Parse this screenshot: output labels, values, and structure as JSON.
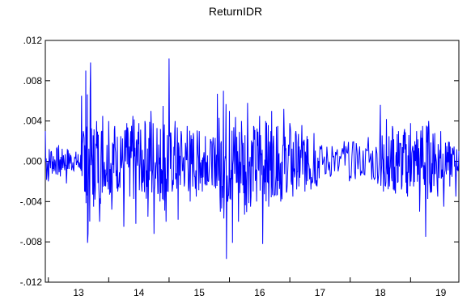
{
  "chart_data": {
    "type": "line",
    "title": "ReturnIDR",
    "xlabel": "",
    "ylabel": "",
    "ylim": [
      -0.012,
      0.012
    ],
    "xlim": [
      2012.45,
      2019.3
    ],
    "y_ticks": [
      0.012,
      0.008,
      0.004,
      0.0,
      -0.004,
      -0.008,
      -0.012
    ],
    "y_tick_labels": [
      ".012",
      ".008",
      ".004",
      ".000",
      "-.004",
      "-.008",
      "-.012"
    ],
    "x_tick_positions": [
      2013,
      2014,
      2015,
      2016,
      2017,
      2018,
      2019
    ],
    "x_tick_labels": [
      "13",
      "14",
      "15",
      "16",
      "17",
      "18",
      "19"
    ],
    "grid": false,
    "legend": "none",
    "series": [
      {
        "color": "#0000ff",
        "x": [
          2012.45,
          2012.5,
          2012.55,
          2012.6,
          2012.65,
          2012.7,
          2012.75,
          2012.8,
          2012.85,
          2012.9,
          2012.95,
          2013.0,
          2013.05,
          2013.1,
          2013.12,
          2013.15,
          2013.2,
          2013.25,
          2013.3,
          2013.35,
          2013.4,
          2013.45,
          2013.5,
          2013.55,
          2013.6,
          2013.65,
          2013.7,
          2013.75,
          2013.8,
          2013.85,
          2013.9,
          2013.95,
          2014.0,
          2014.05,
          2014.1,
          2014.15,
          2014.2,
          2014.25,
          2014.3,
          2014.35,
          2014.4,
          2014.45,
          2014.5,
          2014.55,
          2014.6,
          2014.65,
          2014.7,
          2014.75,
          2014.8,
          2014.85,
          2014.9,
          2014.95,
          2015.0,
          2015.05,
          2015.1,
          2015.15,
          2015.2,
          2015.25,
          2015.3,
          2015.35,
          2015.4,
          2015.45,
          2015.5,
          2015.55,
          2015.6,
          2015.65,
          2015.7,
          2015.75,
          2015.8,
          2015.85,
          2015.9,
          2015.95,
          2016.0,
          2016.05,
          2016.1,
          2016.15,
          2016.2,
          2016.25,
          2016.3,
          2016.35,
          2016.4,
          2016.45,
          2016.5,
          2016.55,
          2016.6,
          2016.65,
          2016.7,
          2016.75,
          2016.8,
          2016.85,
          2016.9,
          2016.95,
          2017.0,
          2017.1,
          2017.2,
          2017.3,
          2017.4,
          2017.5,
          2017.6,
          2017.7,
          2017.8,
          2017.9,
          2018.0,
          2018.05,
          2018.1,
          2018.15,
          2018.2,
          2018.25,
          2018.3,
          2018.35,
          2018.4,
          2018.45,
          2018.5,
          2018.55,
          2018.6,
          2018.65,
          2018.7,
          2018.75,
          2018.8,
          2018.85,
          2018.9,
          2018.95,
          2019.0,
          2019.05,
          2019.1,
          2019.15,
          2019.2,
          2019.25,
          2019.3
        ],
        "values": [
          0.003,
          -0.002,
          0.001,
          -0.0008,
          0.0012,
          -0.0015,
          0.0006,
          -0.0022,
          0.0008,
          -0.0005,
          0.0003,
          -0.0006,
          0.0065,
          -0.003,
          0.009,
          -0.0081,
          0.0098,
          -0.0045,
          0.004,
          -0.006,
          0.0045,
          -0.0025,
          0.004,
          -0.0048,
          0.0035,
          -0.003,
          0.0025,
          -0.0065,
          0.0038,
          -0.0035,
          0.0045,
          -0.0062,
          0.0038,
          -0.003,
          0.004,
          -0.0055,
          0.005,
          -0.0072,
          0.0033,
          -0.004,
          0.0055,
          -0.006,
          0.0102,
          -0.003,
          0.004,
          -0.0058,
          0.003,
          -0.0025,
          0.0035,
          -0.004,
          0.0028,
          -0.0035,
          0.003,
          -0.003,
          0.0025,
          -0.002,
          0.002,
          -0.0025,
          0.0067,
          -0.005,
          0.007,
          -0.0097,
          0.005,
          -0.0081,
          0.0044,
          -0.006,
          0.004,
          -0.0053,
          0.0058,
          -0.0045,
          0.0035,
          -0.004,
          0.0045,
          -0.0082,
          0.004,
          -0.0045,
          0.005,
          -0.0033,
          0.0035,
          -0.004,
          0.0052,
          -0.003,
          0.0038,
          -0.0035,
          0.003,
          -0.0025,
          0.0036,
          -0.003,
          0.0022,
          -0.0028,
          0.0028,
          -0.0025,
          0.0015,
          -0.0012,
          0.0015,
          -0.001,
          0.002,
          -0.0015,
          0.0018,
          -0.0012,
          0.0024,
          -0.0018,
          0.0056,
          -0.003,
          0.0042,
          -0.0025,
          0.0035,
          -0.0032,
          0.003,
          -0.0028,
          0.0032,
          -0.0035,
          0.0038,
          -0.0025,
          0.003,
          -0.005,
          0.0035,
          -0.0075,
          0.004,
          -0.003,
          0.0028,
          -0.0035,
          0.003,
          -0.0045,
          0.0015,
          -0.0025,
          0.0012,
          -0.0035,
          0.001
        ]
      }
    ]
  }
}
